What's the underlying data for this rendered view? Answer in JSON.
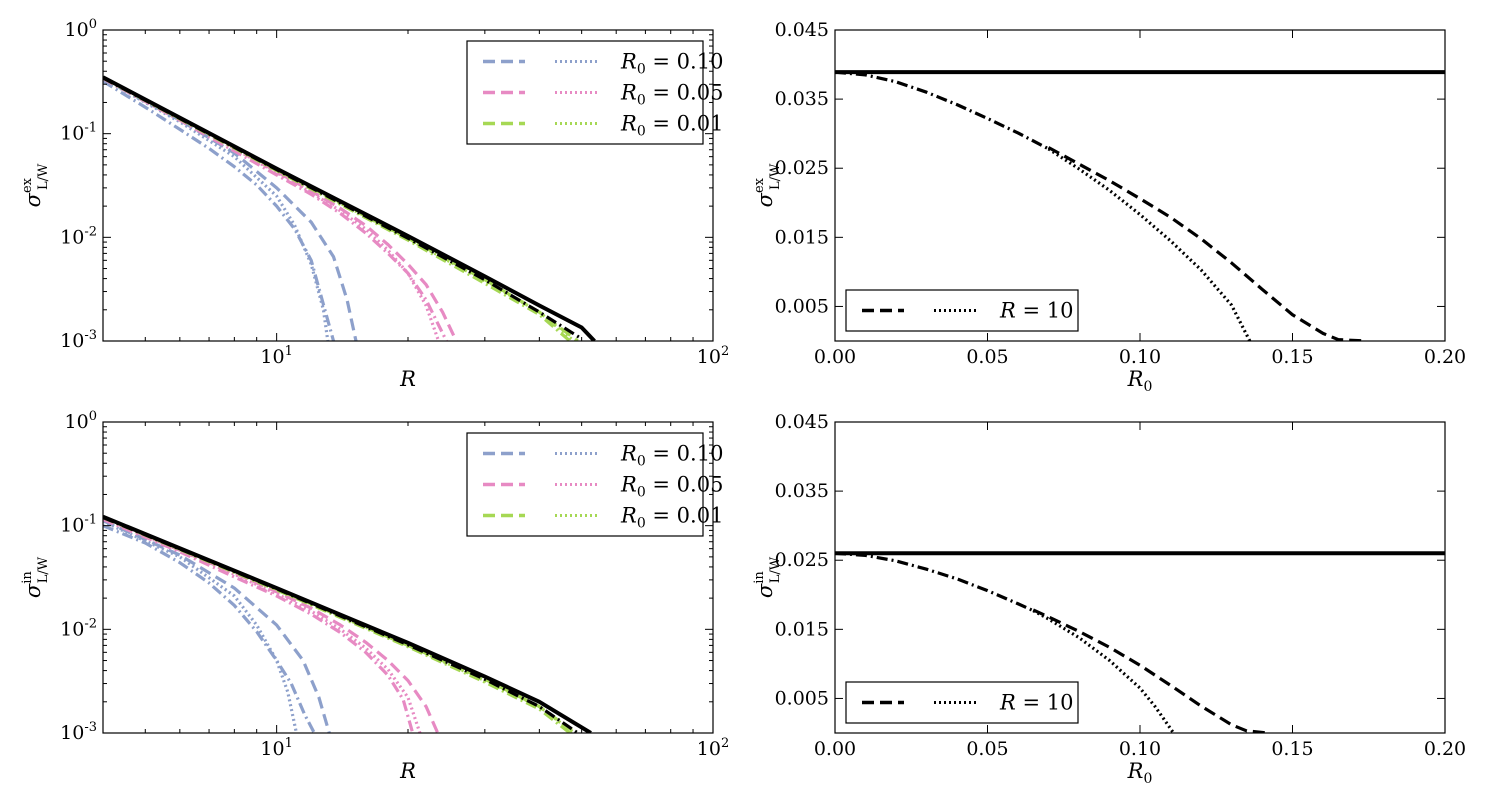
{
  "colors": {
    "r010": "#8da0cb",
    "r005": "#e78ac3",
    "r001": "#a6d854",
    "reference": "#000000"
  },
  "chart_data": [
    {
      "id": "top-left",
      "type": "line",
      "xscale": "log",
      "yscale": "log",
      "xlim": [
        4,
        100
      ],
      "ylim": [
        0.001,
        1
      ],
      "xlabel": "R",
      "ylabel": {
        "base": "σ",
        "sup": "ex",
        "sub": "L/W"
      },
      "xticks": [
        {
          "v": 10,
          "base": "10",
          "exp": "1"
        },
        {
          "v": 100,
          "base": "10",
          "exp": "2"
        }
      ],
      "yticks": [
        {
          "v": 1,
          "base": "10",
          "exp": "0"
        },
        {
          "v": 0.1,
          "base": "10",
          "exp": "-1"
        },
        {
          "v": 0.01,
          "base": "10",
          "exp": "-2"
        },
        {
          "v": 0.001,
          "base": "10",
          "exp": "-3"
        }
      ],
      "legend": {
        "position": "top-right",
        "entries": [
          {
            "label": "R",
            "sub": "0",
            "eq": " = 0.10",
            "color": "r010"
          },
          {
            "label": "R",
            "sub": "0",
            "eq": " = 0.05",
            "color": "r005"
          },
          {
            "label": "R",
            "sub": "0",
            "eq": " = 0.01",
            "color": "r001"
          }
        ]
      },
      "series": [
        {
          "name": "R0=0.10 dash-dot",
          "color": "r010",
          "style": "dashdot",
          "x": [
            4,
            5,
            6,
            7,
            8,
            9,
            10,
            11,
            12,
            13.5
          ],
          "y": [
            0.32,
            0.18,
            0.11,
            0.072,
            0.048,
            0.032,
            0.02,
            0.012,
            0.006,
            0.001
          ]
        },
        {
          "name": "R0=0.10 dotted",
          "color": "r010",
          "style": "dotted",
          "x": [
            4,
            6,
            8,
            10,
            11,
            12,
            12.8,
            13.1
          ],
          "y": [
            0.34,
            0.13,
            0.06,
            0.025,
            0.013,
            0.0055,
            0.002,
            0.001
          ]
        },
        {
          "name": "R0=0.10 dashed",
          "color": "r010",
          "style": "dashed",
          "x": [
            4,
            6,
            8,
            10,
            12,
            13.5,
            14.5,
            15.2
          ],
          "y": [
            0.34,
            0.135,
            0.065,
            0.03,
            0.014,
            0.0065,
            0.0025,
            0.001
          ]
        },
        {
          "name": "R0=0.05 dash-dot",
          "color": "r005",
          "style": "dashdot",
          "x": [
            4,
            6,
            8,
            10,
            12,
            14,
            16,
            18,
            20,
            22,
            24.5
          ],
          "y": [
            0.34,
            0.135,
            0.068,
            0.04,
            0.026,
            0.017,
            0.011,
            0.007,
            0.0045,
            0.0025,
            0.001
          ]
        },
        {
          "name": "R0=0.05 dotted",
          "color": "r005",
          "style": "dotted",
          "x": [
            4,
            6,
            8,
            10,
            12,
            14,
            16,
            18,
            20,
            22,
            23.5
          ],
          "y": [
            0.345,
            0.14,
            0.072,
            0.042,
            0.027,
            0.018,
            0.012,
            0.0075,
            0.0045,
            0.0022,
            0.001
          ]
        },
        {
          "name": "R0=0.05 dashed",
          "color": "r005",
          "style": "dashed",
          "x": [
            4,
            6,
            8,
            10,
            12,
            14,
            16,
            18,
            20,
            22,
            24,
            25.8
          ],
          "y": [
            0.345,
            0.142,
            0.073,
            0.043,
            0.028,
            0.019,
            0.013,
            0.0085,
            0.0055,
            0.0035,
            0.0019,
            0.001
          ]
        },
        {
          "name": "R0=0.01 dash-dot",
          "color": "r001",
          "style": "dashdot",
          "x": [
            4,
            10,
            20,
            30,
            40,
            47
          ],
          "y": [
            0.345,
            0.044,
            0.0094,
            0.0036,
            0.0018,
            0.001
          ]
        },
        {
          "name": "R0=0.01 dotted",
          "color": "r001",
          "style": "dotted",
          "x": [
            4,
            10,
            20,
            30,
            40,
            48
          ],
          "y": [
            0.345,
            0.045,
            0.0097,
            0.0038,
            0.0019,
            0.001
          ]
        },
        {
          "name": "R0=0.01 dashed",
          "color": "r001",
          "style": "dashed",
          "x": [
            4,
            10,
            20,
            30,
            40,
            49
          ],
          "y": [
            0.345,
            0.045,
            0.0098,
            0.0039,
            0.0019,
            0.001
          ]
        },
        {
          "name": "reference dash-dot",
          "color": "reference",
          "style": "dashdot",
          "x": [
            4,
            10,
            20,
            30,
            40,
            50
          ],
          "y": [
            0.345,
            0.045,
            0.0098,
            0.0039,
            0.0019,
            0.00105
          ]
        },
        {
          "name": "reference solid",
          "color": "reference",
          "style": "solid",
          "x": [
            4,
            10,
            20,
            30,
            40,
            50,
            53.5
          ],
          "y": [
            0.35,
            0.046,
            0.0103,
            0.0042,
            0.0022,
            0.00135,
            0.001
          ]
        }
      ]
    },
    {
      "id": "top-right",
      "type": "line",
      "xscale": "linear",
      "yscale": "linear",
      "xlim": [
        0,
        0.2
      ],
      "ylim": [
        0,
        0.045
      ],
      "xlabel": {
        "base": "R",
        "sub": "0"
      },
      "ylabel": {
        "base": "σ",
        "sup": "ex",
        "sub": "L/W"
      },
      "xticks": [
        {
          "v": 0,
          "t": "0.00"
        },
        {
          "v": 0.05,
          "t": "0.05"
        },
        {
          "v": 0.1,
          "t": "0.10"
        },
        {
          "v": 0.15,
          "t": "0.15"
        },
        {
          "v": 0.2,
          "t": "0.20"
        }
      ],
      "yticks": [
        {
          "v": 0.005,
          "t": "0.005"
        },
        {
          "v": 0.015,
          "t": "0.015"
        },
        {
          "v": 0.025,
          "t": "0.025"
        },
        {
          "v": 0.035,
          "t": "0.035"
        },
        {
          "v": 0.045,
          "t": "0.045"
        }
      ],
      "legend": {
        "position": "bottom-left",
        "entries": [
          {
            "label": "R",
            "sub": "",
            "eq": " = 10",
            "color": "reference"
          }
        ]
      },
      "series": [
        {
          "name": "solid",
          "color": "reference",
          "style": "solid",
          "x": [
            0,
            0.2
          ],
          "y": [
            0.0389,
            0.0389
          ]
        },
        {
          "name": "dash-dot",
          "color": "reference",
          "style": "dashdot",
          "x": [
            0,
            0.01,
            0.02,
            0.03,
            0.04,
            0.05,
            0.06,
            0.07
          ],
          "y": [
            0.0389,
            0.0385,
            0.0375,
            0.036,
            0.0342,
            0.0322,
            0.0301,
            0.0278
          ]
        },
        {
          "name": "dotted",
          "color": "reference",
          "style": "dotted",
          "x": [
            0.07,
            0.08,
            0.09,
            0.1,
            0.11,
            0.12,
            0.13,
            0.136
          ],
          "y": [
            0.0278,
            0.0249,
            0.0218,
            0.0183,
            0.0145,
            0.0103,
            0.0052,
            0
          ]
        },
        {
          "name": "dashed",
          "color": "reference",
          "style": "dashed",
          "x": [
            0.07,
            0.08,
            0.09,
            0.1,
            0.11,
            0.12,
            0.13,
            0.14,
            0.15,
            0.16,
            0.165,
            0.174
          ],
          "y": [
            0.028,
            0.0256,
            0.0232,
            0.0206,
            0.0179,
            0.0148,
            0.0113,
            0.0075,
            0.0038,
            0.0011,
            0.0002,
            0
          ]
        }
      ]
    },
    {
      "id": "bottom-left",
      "type": "line",
      "xscale": "log",
      "yscale": "log",
      "xlim": [
        4,
        100
      ],
      "ylim": [
        0.001,
        1
      ],
      "xlabel": "R",
      "ylabel": {
        "base": "σ",
        "sup": "in",
        "sub": "L/W"
      },
      "xticks": [
        {
          "v": 10,
          "base": "10",
          "exp": "1"
        },
        {
          "v": 100,
          "base": "10",
          "exp": "2"
        }
      ],
      "yticks": [
        {
          "v": 1,
          "base": "10",
          "exp": "0"
        },
        {
          "v": 0.1,
          "base": "10",
          "exp": "-1"
        },
        {
          "v": 0.01,
          "base": "10",
          "exp": "-2"
        },
        {
          "v": 0.001,
          "base": "10",
          "exp": "-3"
        }
      ],
      "legend": {
        "position": "top-right",
        "entries": [
          {
            "label": "R",
            "sub": "0",
            "eq": " = 0.10",
            "color": "r010"
          },
          {
            "label": "R",
            "sub": "0",
            "eq": " = 0.05",
            "color": "r005"
          },
          {
            "label": "R",
            "sub": "0",
            "eq": " = 0.01",
            "color": "r001"
          }
        ]
      },
      "series": [
        {
          "name": "R0=0.10 dash-dot",
          "color": "r010",
          "style": "dashdot",
          "x": [
            4,
            5,
            6,
            7,
            8,
            9,
            10,
            10.8,
            11.6,
            12.2
          ],
          "y": [
            0.1,
            0.068,
            0.044,
            0.028,
            0.017,
            0.0095,
            0.005,
            0.003,
            0.0015,
            0.001
          ]
        },
        {
          "name": "R0=0.10 dotted",
          "color": "r010",
          "style": "dotted",
          "x": [
            4,
            6,
            8,
            9,
            10,
            10.6,
            11.1
          ],
          "y": [
            0.11,
            0.05,
            0.021,
            0.011,
            0.005,
            0.0025,
            0.001
          ]
        },
        {
          "name": "R0=0.10 dashed",
          "color": "r010",
          "style": "dashed",
          "x": [
            4,
            6,
            8,
            10,
            11.5,
            12.5,
            13.2
          ],
          "y": [
            0.112,
            0.052,
            0.025,
            0.011,
            0.005,
            0.0022,
            0.001
          ]
        },
        {
          "name": "R0=0.05 dash-dot",
          "color": "r005",
          "style": "dashdot",
          "x": [
            4,
            6,
            8,
            10,
            12,
            14,
            16,
            18,
            19.5,
            20.5
          ],
          "y": [
            0.115,
            0.056,
            0.032,
            0.021,
            0.014,
            0.0093,
            0.006,
            0.0036,
            0.0021,
            0.001
          ]
        },
        {
          "name": "R0=0.05 dotted",
          "color": "r005",
          "style": "dotted",
          "x": [
            4,
            6,
            8,
            10,
            12,
            14,
            16,
            18,
            20,
            21.3
          ],
          "y": [
            0.118,
            0.058,
            0.034,
            0.022,
            0.015,
            0.01,
            0.0066,
            0.0041,
            0.0022,
            0.001
          ]
        },
        {
          "name": "R0=0.05 dashed",
          "color": "r005",
          "style": "dashed",
          "x": [
            4,
            6,
            8,
            10,
            12,
            14,
            16,
            18,
            20,
            22,
            23.4
          ],
          "y": [
            0.118,
            0.058,
            0.035,
            0.023,
            0.016,
            0.011,
            0.0075,
            0.005,
            0.0032,
            0.0018,
            0.001
          ]
        },
        {
          "name": "R0=0.01 dash-dot",
          "color": "r001",
          "style": "dashdot",
          "x": [
            4,
            10,
            20,
            30,
            40,
            47
          ],
          "y": [
            0.12,
            0.024,
            0.0068,
            0.0031,
            0.0017,
            0.001
          ]
        },
        {
          "name": "R0=0.01 dotted",
          "color": "r001",
          "style": "dotted",
          "x": [
            4,
            10,
            20,
            30,
            40,
            48
          ],
          "y": [
            0.12,
            0.0245,
            0.007,
            0.0032,
            0.0018,
            0.001
          ]
        },
        {
          "name": "R0=0.01 dashed",
          "color": "r001",
          "style": "dashed",
          "x": [
            4,
            10,
            20,
            30,
            40,
            48.5
          ],
          "y": [
            0.12,
            0.0245,
            0.007,
            0.0033,
            0.0018,
            0.001
          ]
        },
        {
          "name": "reference dash-dot",
          "color": "reference",
          "style": "dashdot",
          "x": [
            4,
            10,
            20,
            30,
            40,
            49
          ],
          "y": [
            0.12,
            0.0246,
            0.0071,
            0.0033,
            0.0018,
            0.001
          ]
        },
        {
          "name": "reference solid",
          "color": "reference",
          "style": "solid",
          "x": [
            4,
            10,
            20,
            30,
            40,
            52.5
          ],
          "y": [
            0.122,
            0.025,
            0.0074,
            0.0035,
            0.002,
            0.001
          ]
        }
      ]
    },
    {
      "id": "bottom-right",
      "type": "line",
      "xscale": "linear",
      "yscale": "linear",
      "xlim": [
        0,
        0.2
      ],
      "ylim": [
        0,
        0.045
      ],
      "xlabel": {
        "base": "R",
        "sub": "0"
      },
      "ylabel": {
        "base": "σ",
        "sup": "in",
        "sub": "L/W"
      },
      "xticks": [
        {
          "v": 0,
          "t": "0.00"
        },
        {
          "v": 0.05,
          "t": "0.05"
        },
        {
          "v": 0.1,
          "t": "0.10"
        },
        {
          "v": 0.15,
          "t": "0.15"
        },
        {
          "v": 0.2,
          "t": "0.20"
        }
      ],
      "yticks": [
        {
          "v": 0.005,
          "t": "0.005"
        },
        {
          "v": 0.015,
          "t": "0.015"
        },
        {
          "v": 0.025,
          "t": "0.025"
        },
        {
          "v": 0.035,
          "t": "0.035"
        },
        {
          "v": 0.045,
          "t": "0.045"
        }
      ],
      "legend": {
        "position": "bottom-left",
        "entries": [
          {
            "label": "R",
            "sub": "",
            "eq": " = 10",
            "color": "reference"
          }
        ]
      },
      "series": [
        {
          "name": "solid",
          "color": "reference",
          "style": "solid",
          "x": [
            0,
            0.2
          ],
          "y": [
            0.026,
            0.026
          ]
        },
        {
          "name": "dash-dot",
          "color": "reference",
          "style": "dashdot",
          "x": [
            0,
            0.01,
            0.02,
            0.03,
            0.04,
            0.05,
            0.06,
            0.065
          ],
          "y": [
            0.026,
            0.0257,
            0.0249,
            0.0237,
            0.0223,
            0.0206,
            0.0187,
            0.0177
          ]
        },
        {
          "name": "dotted",
          "color": "reference",
          "style": "dotted",
          "x": [
            0.065,
            0.07,
            0.08,
            0.09,
            0.1,
            0.105,
            0.111
          ],
          "y": [
            0.0177,
            0.0165,
            0.0138,
            0.0105,
            0.0065,
            0.0038,
            0
          ]
        },
        {
          "name": "dashed",
          "color": "reference",
          "style": "dashed",
          "x": [
            0.065,
            0.07,
            0.08,
            0.09,
            0.1,
            0.11,
            0.12,
            0.13,
            0.135,
            0.142
          ],
          "y": [
            0.0178,
            0.0168,
            0.0147,
            0.0124,
            0.0098,
            0.0069,
            0.0039,
            0.0012,
            0.0003,
            0
          ]
        }
      ]
    }
  ]
}
